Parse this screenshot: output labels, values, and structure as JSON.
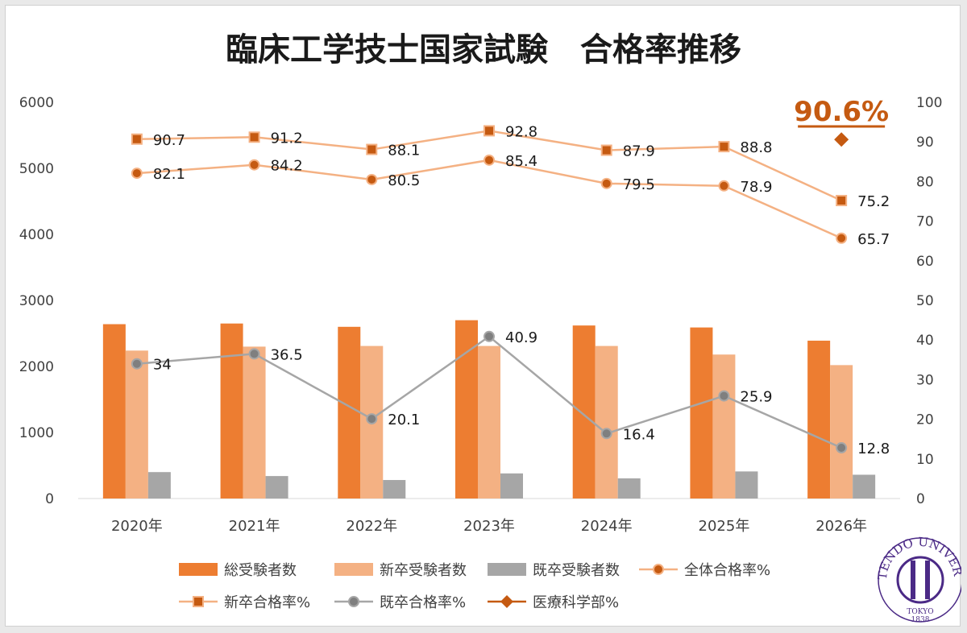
{
  "chart_data": {
    "type": "bar",
    "title": "臨床工学技士国家試験　合格率推移",
    "categories": [
      "2020年",
      "2021年",
      "2022年",
      "2023年",
      "2024年",
      "2025年",
      "2026年"
    ],
    "y_left": {
      "ylim": [
        0,
        6000
      ],
      "ticks": [
        "0",
        "1000",
        "2000",
        "3000",
        "4000",
        "5000",
        "6000"
      ]
    },
    "y_right": {
      "ylim": [
        0,
        100
      ],
      "ticks": [
        "0",
        "10",
        "20",
        "30",
        "40",
        "50",
        "60",
        "70",
        "80",
        "90",
        "100"
      ]
    },
    "bar_series": [
      {
        "name": "総受験者数",
        "color": "#ed7d31",
        "values": [
          2640,
          2650,
          2600,
          2700,
          2620,
          2590,
          2390
        ]
      },
      {
        "name": "新卒受験者数",
        "color": "#f4b183",
        "values": [
          2240,
          2300,
          2310,
          2310,
          2310,
          2180,
          2020
        ]
      },
      {
        "name": "既卒受験者数",
        "color": "#a6a6a6",
        "values": [
          400,
          340,
          280,
          380,
          305,
          410,
          360
        ]
      }
    ],
    "line_series": [
      {
        "name": "全体合格率%",
        "color": "#f4b183",
        "marker": "circle",
        "marker_color": "#c55a11",
        "values": [
          82.1,
          84.2,
          80.5,
          85.4,
          79.5,
          78.9,
          65.7
        ],
        "labels": [
          "82.1",
          "84.2",
          "80.5",
          "85.4",
          "79.5",
          "78.9",
          "65.7"
        ]
      },
      {
        "name": "新卒合格率%",
        "color": "#f4b183",
        "marker": "square",
        "marker_color": "#c55a11",
        "values": [
          90.7,
          91.2,
          88.1,
          92.8,
          87.9,
          88.8,
          75.2
        ],
        "labels": [
          "90.7",
          "91.2",
          "88.1",
          "92.8",
          "87.9",
          "88.8",
          "75.2"
        ]
      },
      {
        "name": "既卒合格率%",
        "color": "#a6a6a6",
        "marker": "circle",
        "marker_color": "#7f7f7f",
        "values": [
          34,
          36.5,
          20.1,
          40.9,
          16.4,
          25.9,
          12.8
        ],
        "labels": [
          "34",
          "36.5",
          "20.1",
          "40.9",
          "16.4",
          "25.9",
          "12.8"
        ]
      },
      {
        "name": "医療科学部%",
        "color": "#c55a11",
        "marker": "diamond",
        "marker_color": "#c55a11",
        "values": [
          null,
          null,
          null,
          null,
          null,
          null,
          90.6
        ],
        "labels": []
      }
    ],
    "highlight": {
      "text": "90.6%",
      "color": "#c55a11"
    },
    "legend_position": "bottom"
  },
  "logo": {
    "text": "JUNTENDO UNIVERSITY",
    "sub": "TOKYO",
    "year": "1838",
    "color": "#4b2a86"
  }
}
